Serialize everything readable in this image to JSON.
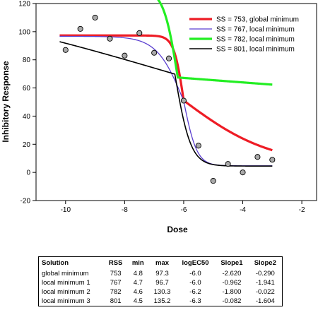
{
  "chart_data": {
    "type": "line",
    "xlabel": "Dose",
    "ylabel": "Inhibitory Response",
    "xlim": [
      -11,
      -1.5
    ],
    "ylim": [
      -20,
      120
    ],
    "x_ticks": [
      -10,
      -8,
      -6,
      -4,
      -2
    ],
    "y_ticks": [
      -20,
      0,
      20,
      40,
      60,
      80,
      100,
      120
    ],
    "grid": false,
    "legend_position": "top-right",
    "points": {
      "x": [
        -10,
        -9.5,
        -9,
        -8.5,
        -8,
        -7.5,
        -7,
        -6.5,
        -6,
        -5.5,
        -5,
        -4.5,
        -4,
        -3.5,
        -3
      ],
      "y": [
        87,
        102,
        110,
        95,
        83,
        99,
        85,
        81,
        51,
        19,
        -6,
        6,
        0,
        11,
        9
      ],
      "color": "#a9a9a9"
    },
    "series": [
      {
        "name": "SS = 753, global minimum",
        "color": "#ee1c25",
        "stroke": 3.2,
        "min": 4.8,
        "max": 97.3,
        "logEC50": -6.0,
        "slope1": -2.62,
        "slope2": -0.29
      },
      {
        "name": "SS = 767, local  minimum",
        "color": "#5b3fd0",
        "stroke": 1.3,
        "min": 4.7,
        "max": 96.7,
        "logEC50": -6.0,
        "slope1": -0.962,
        "slope2": -1.941
      },
      {
        "name": "SS = 782, local minimum",
        "color": "#22ee22",
        "stroke": 3.2,
        "min": 4.6,
        "max": 130.3,
        "logEC50": -6.2,
        "slope1": -1.8,
        "slope2": -0.022
      },
      {
        "name": "SS = 801, local minimum",
        "color": "#000000",
        "stroke": 1.6,
        "min": 4.5,
        "max": 135.2,
        "logEC50": -6.3,
        "slope1": -0.082,
        "slope2": -1.604
      }
    ]
  },
  "table": {
    "headers": [
      "Solution",
      "RSS",
      "min",
      "max",
      "logEC50",
      "Slope1",
      "Slope2"
    ],
    "rows": [
      [
        "global minimum",
        "753",
        "4.8",
        "97.3",
        "-6.0",
        "-2.620",
        "-0.290"
      ],
      [
        "local minimum 1",
        "767",
        "4.7",
        "96.7",
        "-6.0",
        "-0.962",
        "-1.941"
      ],
      [
        "local minimum 2",
        "782",
        "4.6",
        "130.3",
        "-6.2",
        "-1.800",
        "-0.022"
      ],
      [
        "local minimum 3",
        "801",
        "4.5",
        "135.2",
        "-6.3",
        "-0.082",
        "-1.604"
      ]
    ]
  }
}
